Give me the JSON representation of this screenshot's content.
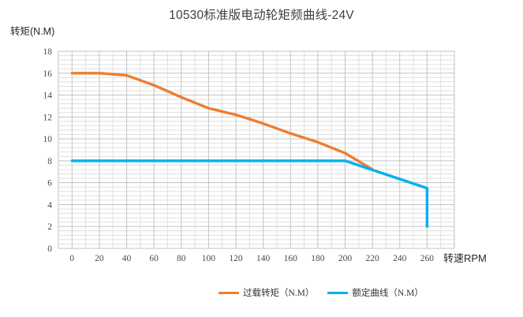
{
  "chart_data": {
    "type": "line",
    "title": "10530标准版电动轮矩频曲线-24V",
    "xlabel": "转速RPM",
    "ylabel": "转矩(N.M)",
    "xlim": [
      -10,
      280
    ],
    "ylim": [
      0,
      18
    ],
    "x_major_ticks": [
      0,
      20,
      40,
      60,
      80,
      100,
      120,
      140,
      160,
      180,
      200,
      220,
      240,
      260
    ],
    "y_major_ticks": [
      0,
      2,
      4,
      6,
      8,
      10,
      12,
      14,
      16,
      18
    ],
    "x_minor_step": 10,
    "y_minor_step": 0.4,
    "grid": "major+minor",
    "legend_position": "bottom",
    "series": [
      {
        "name": "过载转矩（N.M）",
        "color": "#ED7D31",
        "points": [
          [
            0,
            16
          ],
          [
            20,
            16
          ],
          [
            40,
            15.8
          ],
          [
            60,
            14.9
          ],
          [
            80,
            13.8
          ],
          [
            100,
            12.8
          ],
          [
            120,
            12.2
          ],
          [
            140,
            11.4
          ],
          [
            160,
            10.5
          ],
          [
            180,
            9.7
          ],
          [
            200,
            8.7
          ],
          [
            220,
            7.2
          ]
        ]
      },
      {
        "name": "额定曲线（N.M）",
        "color": "#00B0F0",
        "points": [
          [
            0,
            8
          ],
          [
            200,
            8
          ],
          [
            260,
            5.5
          ],
          [
            260,
            2
          ]
        ]
      }
    ],
    "colors": {
      "major_grid": "#c3c3c3",
      "minor_grid": "#e0e0e0",
      "tick_text": "#4a4a4a"
    }
  }
}
